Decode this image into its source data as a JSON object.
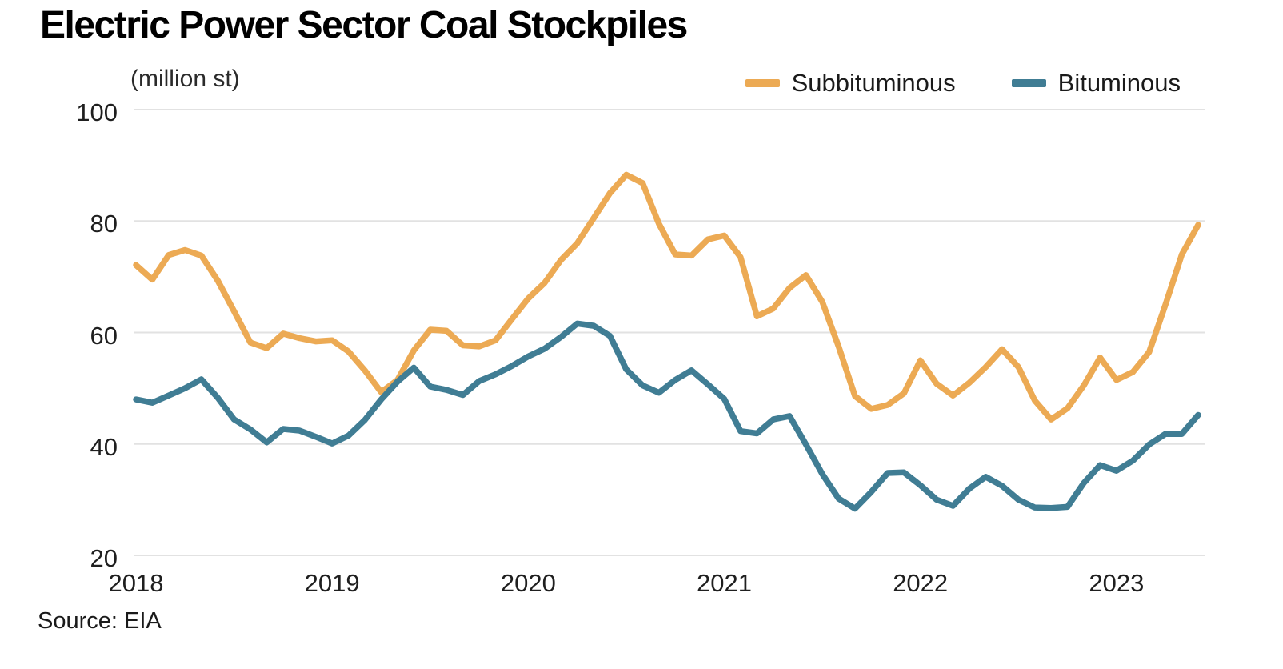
{
  "header": {
    "title": "Electric Power Sector Coal Stockpiles"
  },
  "axis": {
    "unit_label": "(million st)"
  },
  "legend": {
    "items": [
      {
        "label": "Subbituminous",
        "color": "#ECAA54"
      },
      {
        "label": "Bituminous",
        "color": "#407D94"
      }
    ]
  },
  "footer": {
    "source": "Source: EIA"
  },
  "chart_data": {
    "type": "line",
    "title": "Electric Power Sector Coal Stockpiles",
    "unit": "million st",
    "x": {
      "frequency": "monthly",
      "start": "2018-01",
      "end": "2023-06",
      "n_points": 66,
      "tick_labels": [
        "2018",
        "2019",
        "2020",
        "2021",
        "2022",
        "2023"
      ],
      "tick_month_indices": [
        0,
        12,
        24,
        36,
        48,
        60
      ]
    },
    "ylim": [
      20,
      100
    ],
    "y_ticks": [
      100,
      80,
      60,
      40,
      20
    ],
    "grid": "horizontal",
    "legend_position": "top-right",
    "series": [
      {
        "name": "Subbituminous",
        "color": "#ECAA54",
        "values": [
          72.1,
          69.5,
          73.9,
          74.8,
          73.8,
          69.3,
          63.8,
          58.2,
          57.2,
          59.8,
          59.0,
          58.4,
          58.6,
          56.6,
          53.2,
          49.3,
          51.5,
          56.8,
          60.5,
          60.3,
          57.7,
          57.5,
          58.6,
          62.4,
          66.1,
          68.9,
          73.0,
          76.0,
          80.5,
          85.0,
          88.3,
          86.8,
          79.5,
          74.0,
          73.8,
          76.7,
          77.4,
          73.5,
          62.9,
          64.3,
          68.0,
          70.3,
          65.5,
          57.5,
          48.6,
          46.3,
          47.0,
          49.1,
          55.0,
          50.8,
          48.7,
          51.0,
          53.8,
          57.0,
          53.8,
          47.8,
          44.4,
          46.4,
          50.5,
          55.5,
          51.5,
          52.9,
          56.5,
          65.0,
          74.0,
          79.3
        ]
      },
      {
        "name": "Bituminous",
        "color": "#407D94",
        "values": [
          48.0,
          47.4,
          48.7,
          50.0,
          51.6,
          48.3,
          44.4,
          42.6,
          40.3,
          42.7,
          42.4,
          41.3,
          40.1,
          41.5,
          44.3,
          48.0,
          51.2,
          53.7,
          50.3,
          49.7,
          48.8,
          51.3,
          52.5,
          54.0,
          55.7,
          57.1,
          59.2,
          61.6,
          61.2,
          59.4,
          53.4,
          50.5,
          49.2,
          51.5,
          53.2,
          50.7,
          48.1,
          42.3,
          41.9,
          44.4,
          45.0,
          39.9,
          34.6,
          30.2,
          28.4,
          31.4,
          34.8,
          34.9,
          32.6,
          30.0,
          28.9,
          32.0,
          34.1,
          32.5,
          30.0,
          28.6,
          28.5,
          28.7,
          33.0,
          36.2,
          35.2,
          37.0,
          39.9,
          41.8,
          41.8,
          45.2
        ]
      }
    ]
  }
}
